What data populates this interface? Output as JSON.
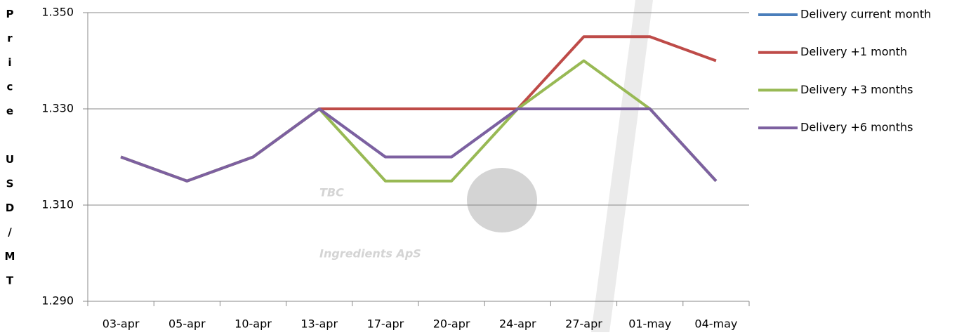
{
  "chart_data": {
    "type": "line",
    "y_label": "Price USD/MT",
    "watermark": [
      "TBC",
      "Ingredients ApS"
    ],
    "categories": [
      "03-apr",
      "05-apr",
      "10-apr",
      "13-apr",
      "17-apr",
      "20-apr",
      "24-apr",
      "27-apr",
      "01-may",
      "04-may"
    ],
    "series": [
      {
        "name": "Delivery current month",
        "color": "#4a7ebb",
        "values": [
          1320,
          1315,
          1320,
          1330,
          1320,
          1320,
          1330,
          1330,
          1330,
          1315
        ]
      },
      {
        "name": "Delivery +1 month",
        "color": "#be4b48",
        "values": [
          1320,
          1315,
          1320,
          1330,
          1330,
          1330,
          1330,
          1345,
          1345,
          1340
        ]
      },
      {
        "name": "Delivery +3 months",
        "color": "#98b954",
        "values": [
          1320,
          1315,
          1320,
          1330,
          1315,
          1315,
          1330,
          1340,
          1330,
          1315
        ]
      },
      {
        "name": "Delivery +6 months",
        "color": "#7d60a0",
        "values": [
          1320,
          1315,
          1320,
          1330,
          1320,
          1320,
          1330,
          1330,
          1330,
          1315
        ]
      }
    ],
    "ylim": [
      1290,
      1350
    ],
    "yticks": [
      {
        "value": 1290,
        "label": "1.290"
      },
      {
        "value": 1310,
        "label": "1.310"
      },
      {
        "value": 1330,
        "label": "1.330"
      },
      {
        "value": 1350,
        "label": "1.350"
      }
    ],
    "grid": true,
    "legend": "right"
  }
}
